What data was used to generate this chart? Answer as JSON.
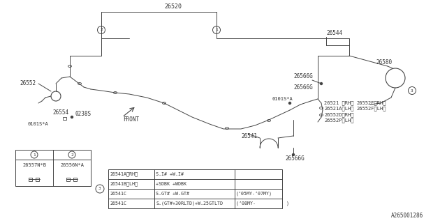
{
  "bg_color": "#ffffff",
  "line_color": "#444444",
  "text_color": "#333333",
  "p26520": "26520",
  "p26552": "26552",
  "p26554": "26554",
  "p26541": "26541",
  "p26544": "26544",
  "p26580": "26580",
  "p26566G": "26566G",
  "p26521RH": "26521 〈RH〉",
  "p26521ALH": "26521A〈LH〉",
  "p26552D": "26552D〈RH〉",
  "p26552P": "26552P〈LH〉",
  "p26552E": "26552E〈RH〉",
  "p26552F": "26552F〈LH〉",
  "p0238S": "0238S",
  "p0101SA": "0101S*A",
  "diagram_id": "A265001286",
  "t1_col1": "26557N*B",
  "t1_col2": "26556N*A",
  "t2_rows": [
    [
      "26541A〈RH〉",
      "S.I# +W.I#",
      ""
    ],
    [
      "26541B〈LH〉",
      "+SDBK +WDBK",
      ""
    ],
    [
      "26541C",
      "S.GT# +W.GT#",
      "(’05MY-’07MY)"
    ],
    [
      "26541C",
      "S.(GT#+30RLTD)+W.25GTLTD",
      "(’08MY-           )"
    ]
  ]
}
